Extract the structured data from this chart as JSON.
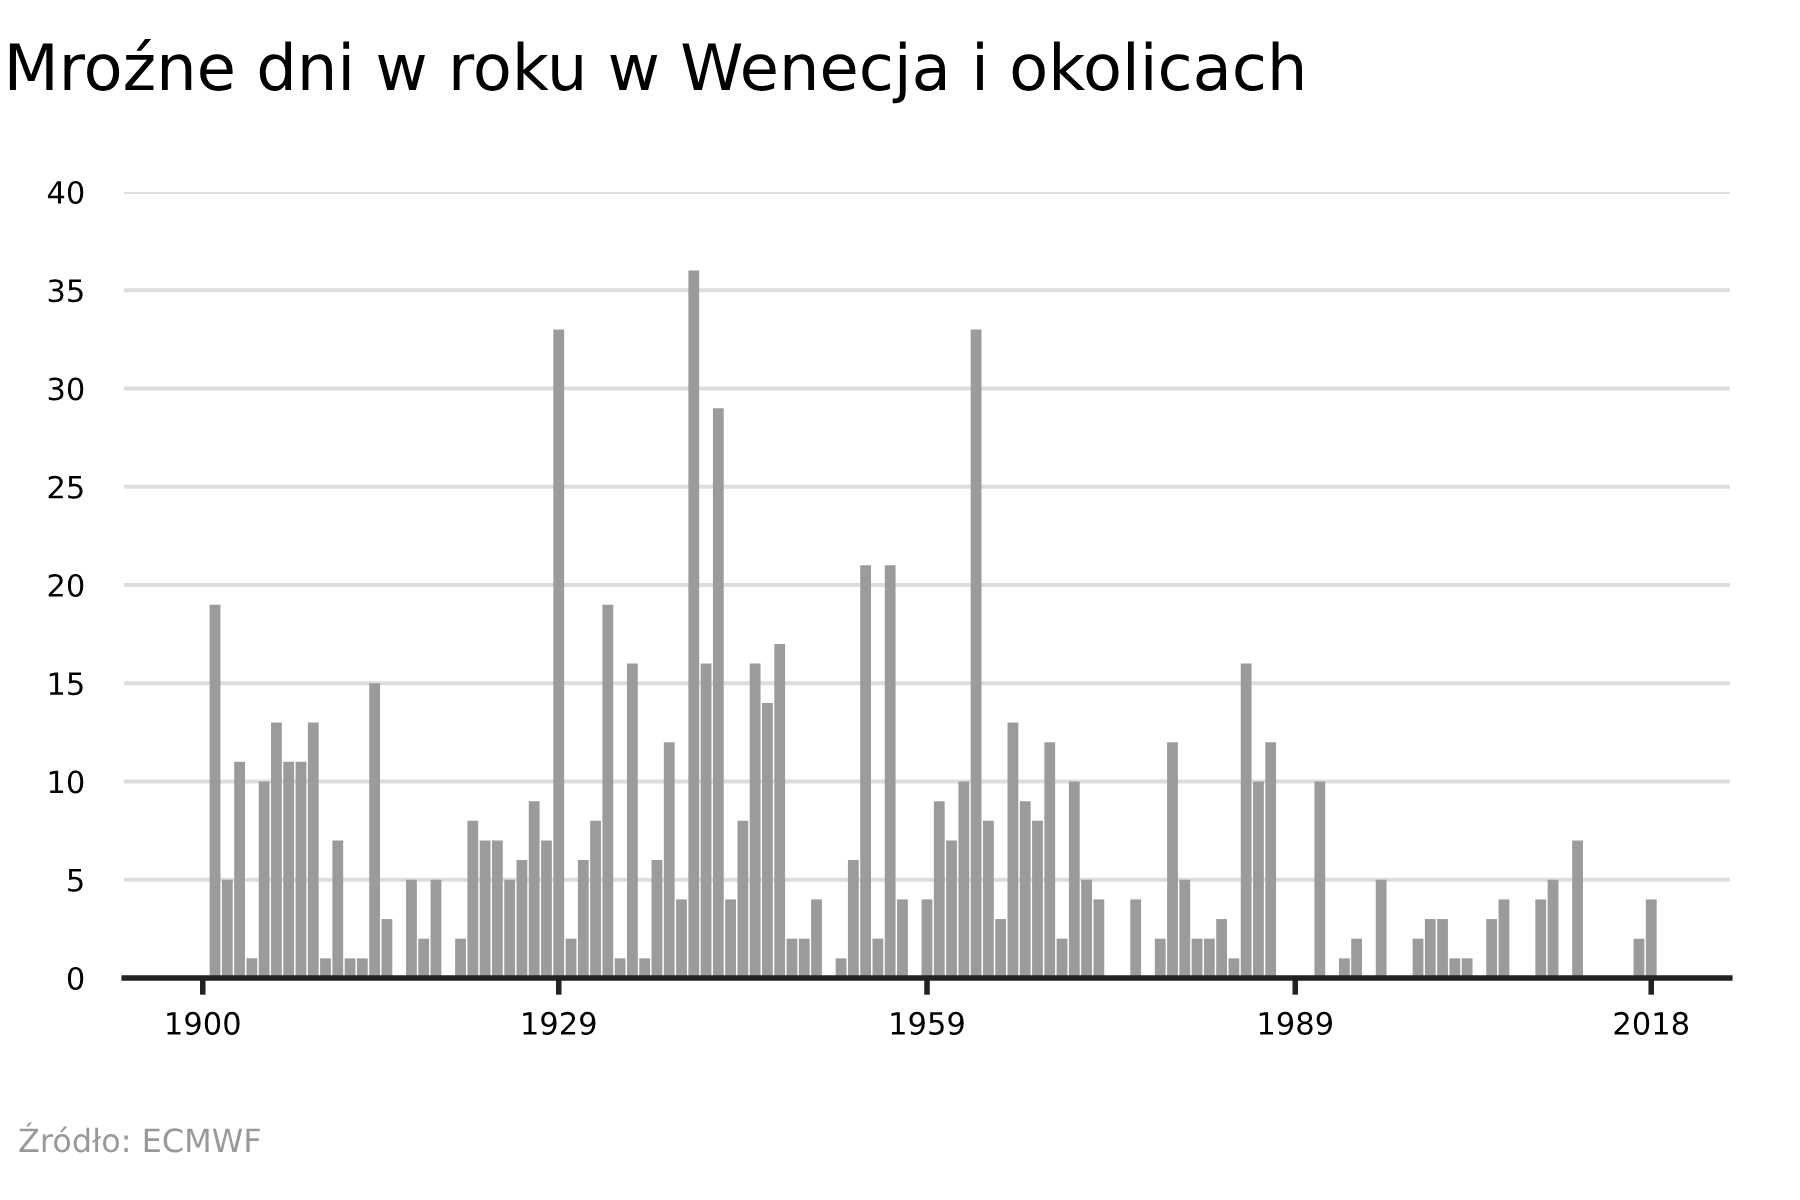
{
  "chart_data": {
    "type": "bar",
    "title": "Mroźne dni w roku w Wenecja i okolicach",
    "x": [
      1900,
      1901,
      1902,
      1903,
      1904,
      1905,
      1906,
      1907,
      1908,
      1909,
      1910,
      1911,
      1912,
      1913,
      1914,
      1915,
      1916,
      1917,
      1918,
      1919,
      1920,
      1921,
      1922,
      1923,
      1924,
      1925,
      1926,
      1927,
      1928,
      1929,
      1930,
      1931,
      1932,
      1933,
      1934,
      1935,
      1936,
      1937,
      1938,
      1939,
      1940,
      1941,
      1942,
      1943,
      1944,
      1945,
      1946,
      1947,
      1948,
      1949,
      1950,
      1951,
      1952,
      1953,
      1954,
      1955,
      1956,
      1957,
      1958,
      1959,
      1960,
      1961,
      1962,
      1963,
      1964,
      1965,
      1966,
      1967,
      1968,
      1969,
      1970,
      1971,
      1972,
      1973,
      1974,
      1975,
      1976,
      1977,
      1978,
      1979,
      1980,
      1981,
      1982,
      1983,
      1984,
      1985,
      1986,
      1987,
      1988,
      1989,
      1990,
      1991,
      1992,
      1993,
      1994,
      1995,
      1996,
      1997,
      1998,
      1999,
      2000,
      2001,
      2002,
      2003,
      2004,
      2005,
      2006,
      2007,
      2008,
      2009,
      2010,
      2011,
      2012,
      2013,
      2014,
      2015,
      2016,
      2017,
      2018
    ],
    "values": [
      0,
      19,
      5,
      11,
      1,
      10,
      13,
      11,
      11,
      13,
      1,
      7,
      1,
      1,
      15,
      3,
      0,
      5,
      2,
      5,
      0,
      2,
      8,
      7,
      7,
      5,
      6,
      9,
      7,
      33,
      2,
      6,
      8,
      19,
      1,
      16,
      1,
      6,
      12,
      4,
      36,
      16,
      29,
      4,
      8,
      16,
      14,
      17,
      2,
      2,
      4,
      0,
      1,
      6,
      21,
      2,
      21,
      4,
      0,
      4,
      9,
      7,
      10,
      33,
      8,
      3,
      13,
      9,
      8,
      12,
      2,
      10,
      5,
      4,
      0,
      0,
      4,
      0,
      2,
      12,
      5,
      2,
      2,
      3,
      1,
      16,
      10,
      12,
      0,
      0,
      0,
      10,
      0,
      1,
      2,
      0,
      5,
      0,
      0,
      2,
      3,
      3,
      1,
      1,
      0,
      3,
      4,
      0,
      0,
      4,
      5,
      0,
      7,
      0,
      0,
      0,
      0,
      2,
      4
    ],
    "color": "#9b9b9b",
    "xlim": [
      1893.6,
      2024.4
    ],
    "xticks": [
      1900,
      1929,
      1959,
      1989,
      2018
    ],
    "ylim": [
      0,
      40
    ],
    "yticks": [
      0,
      5,
      10,
      15,
      20,
      25,
      30,
      35,
      40
    ],
    "grid": "y",
    "legend": false,
    "annotations": [
      "Źródło: ECMWF"
    ]
  }
}
